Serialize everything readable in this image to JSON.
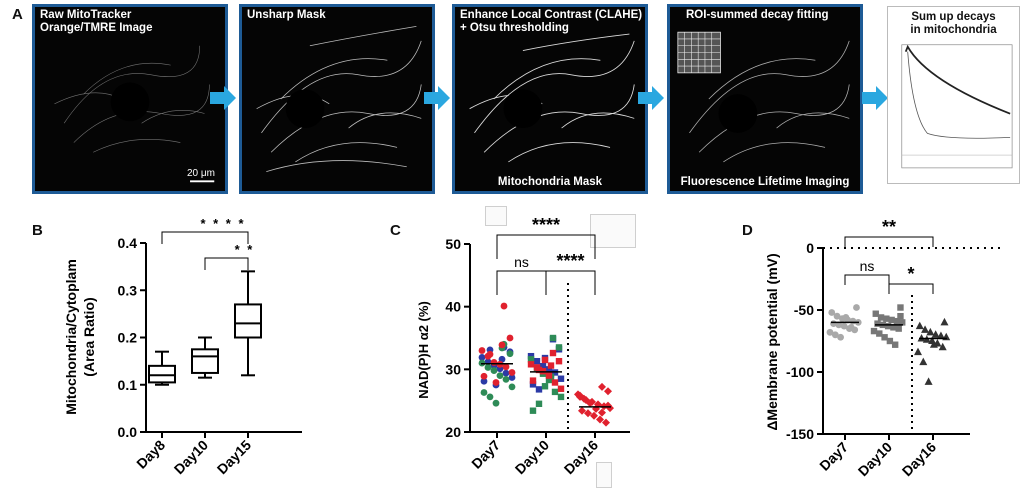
{
  "panel_labels": {
    "a": "A",
    "b": "B",
    "c": "C",
    "d": "D"
  },
  "pipeline": {
    "step1": "Raw MitoTracker\nOrange/TMRE Image",
    "scale_bar": "20 μm",
    "step2": "Unsharp Mask",
    "step3": "Enhance Local Contrast (CLAHE)\n+ Otsu thresholding",
    "step3_bottom": "Mitochondria Mask",
    "step4": "ROI-summed decay fitting",
    "step4_bottom": "Fluorescence Lifetime Imaging",
    "step5": "Sum up decays\nin mitochondria",
    "colors": {
      "frame": "#1e5b96",
      "arrow": "#2aa7e0"
    }
  },
  "chart_data": [
    {
      "id": "B",
      "type": "box",
      "ylabel": "Mitochondria/Cytoplam\n(Area Ratio)",
      "categories": [
        "Day8",
        "Day10",
        "Day15"
      ],
      "ylim": [
        0.0,
        0.4
      ],
      "yticks": [
        "0.0",
        "0.1",
        "0.2",
        "0.3",
        "0.4"
      ],
      "boxes": [
        {
          "min": 0.1,
          "q1": 0.105,
          "median": 0.12,
          "q3": 0.14,
          "max": 0.17
        },
        {
          "min": 0.115,
          "q1": 0.125,
          "median": 0.16,
          "q3": 0.175,
          "max": 0.2
        },
        {
          "min": 0.12,
          "q1": 0.2,
          "median": 0.23,
          "q3": 0.27,
          "max": 0.34
        }
      ],
      "significance": [
        {
          "from": 0,
          "to": 2,
          "label": "* * * *"
        },
        {
          "from": 1,
          "to": 2,
          "label": "* *"
        }
      ]
    },
    {
      "id": "C",
      "type": "scatter",
      "ylabel": "NAD(P)H α2 (%)",
      "categories": [
        "Day7",
        "Day10",
        "Day16"
      ],
      "ylim": [
        20,
        50
      ],
      "yticks": [
        "20",
        "30",
        "40",
        "50"
      ],
      "series": [
        {
          "color": "#2b3aa6",
          "shape": "circle",
          "group": 0,
          "values": [
            33.5,
            32.8,
            31.9,
            31.2,
            30.6,
            30.1,
            29.4,
            28.7,
            28.1,
            33.1,
            27.5,
            31.6
          ]
        },
        {
          "color": "#2e8b57",
          "shape": "circle",
          "group": 0,
          "values": [
            34.0,
            32.5,
            31.0,
            30.3,
            29.8,
            29.0,
            28.4,
            27.2,
            26.3,
            25.6,
            24.6,
            33.4
          ]
        },
        {
          "color": "#e0212e",
          "shape": "circle",
          "group": 0,
          "values": [
            40.1,
            35.0,
            33.0,
            32.1,
            31.1,
            30.8,
            30.4,
            29.5,
            28.9,
            32.4,
            27.9,
            33.9
          ]
        },
        {
          "color": "#2b3aa6",
          "shape": "square",
          "group": 1,
          "values": [
            34.8,
            33.2,
            32.1,
            31.3,
            30.5,
            30.0,
            29.5,
            28.5,
            27.6,
            26.8,
            31.8,
            29.2
          ]
        },
        {
          "color": "#2e8b57",
          "shape": "square",
          "group": 1,
          "values": [
            35.0,
            33.5,
            31.6,
            30.2,
            29.3,
            28.3,
            26.4,
            25.6,
            23.4,
            24.5,
            27.3,
            28.8
          ]
        },
        {
          "color": "#e0212e",
          "shape": "square",
          "group": 1,
          "values": [
            32.6,
            31.3,
            30.8,
            30.3,
            29.7,
            29.0,
            27.9,
            26.9,
            28.2,
            29.9,
            31.5,
            30.6
          ]
        },
        {
          "color": "#e0212e",
          "shape": "diamond",
          "group": 2,
          "values": [
            27.2,
            26.5,
            25.6,
            25.1,
            24.8,
            24.4,
            24.1,
            23.8,
            23.4,
            23.0,
            22.6,
            22.0,
            21.5,
            26.0,
            25.3,
            24.6,
            23.7,
            23.1,
            24.2,
            25.8
          ]
        }
      ],
      "significance": [
        {
          "from": 0,
          "to": 2,
          "label": "****"
        },
        {
          "from": 0,
          "to": 1,
          "label": "ns"
        },
        {
          "from": 1,
          "to": 2,
          "label": "****"
        }
      ]
    },
    {
      "id": "D",
      "type": "scatter",
      "ylabel": "ΔMembrane potential (mV)",
      "categories": [
        "Day7",
        "Day10",
        "Day16"
      ],
      "ylim": [
        -150,
        0
      ],
      "yticks": [
        "0",
        "-50",
        "-100",
        "-150"
      ],
      "series": [
        {
          "color": "#a9a9a9",
          "shape": "circle",
          "group": 0,
          "values": [
            -48,
            -52,
            -55,
            -57,
            -58,
            -59,
            -60,
            -61,
            -62,
            -63,
            -65,
            -66,
            -68,
            -70,
            -72,
            -56,
            -64
          ]
        },
        {
          "color": "#777777",
          "shape": "square",
          "group": 1,
          "values": [
            -48,
            -53,
            -56,
            -57,
            -58,
            -59,
            -60,
            -61,
            -62,
            -63,
            -64,
            -65,
            -67,
            -69,
            -72,
            -75,
            -78,
            -55
          ]
        },
        {
          "color": "#333333",
          "shape": "triangle",
          "group": 2,
          "values": [
            -60,
            -63,
            -66,
            -68,
            -70,
            -71,
            -72,
            -73,
            -74,
            -75,
            -77,
            -80,
            -84,
            -92,
            -108,
            -78
          ]
        }
      ],
      "mean_lines": [
        -60,
        -62,
        -73
      ],
      "significance": [
        {
          "from": 0,
          "to": 2,
          "label": "**"
        },
        {
          "from": 0,
          "to": 1,
          "label": "ns"
        },
        {
          "from": 1,
          "to": 2,
          "label": "*"
        }
      ]
    }
  ]
}
